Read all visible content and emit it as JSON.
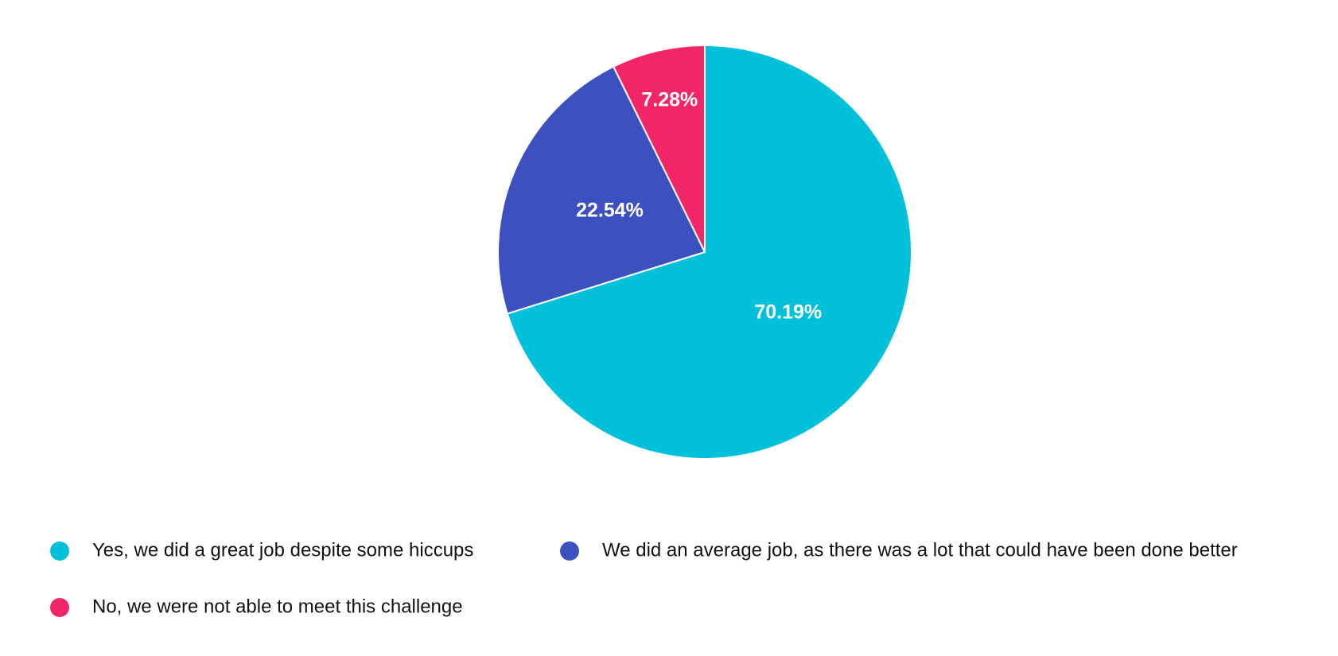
{
  "chart_data": {
    "type": "pie",
    "categories": [
      "Yes, we did a great job despite some hiccups",
      "We did an average job, as there was a lot that could have been done better",
      "No, we were not able to meet this challenge"
    ],
    "values": [
      70.19,
      22.54,
      7.28
    ],
    "value_labels": [
      "70.19%",
      "22.54%",
      "7.28%"
    ],
    "colors": [
      "#00c1d9",
      "#3d50bf",
      "#f22566"
    ],
    "legend": "bottom"
  }
}
